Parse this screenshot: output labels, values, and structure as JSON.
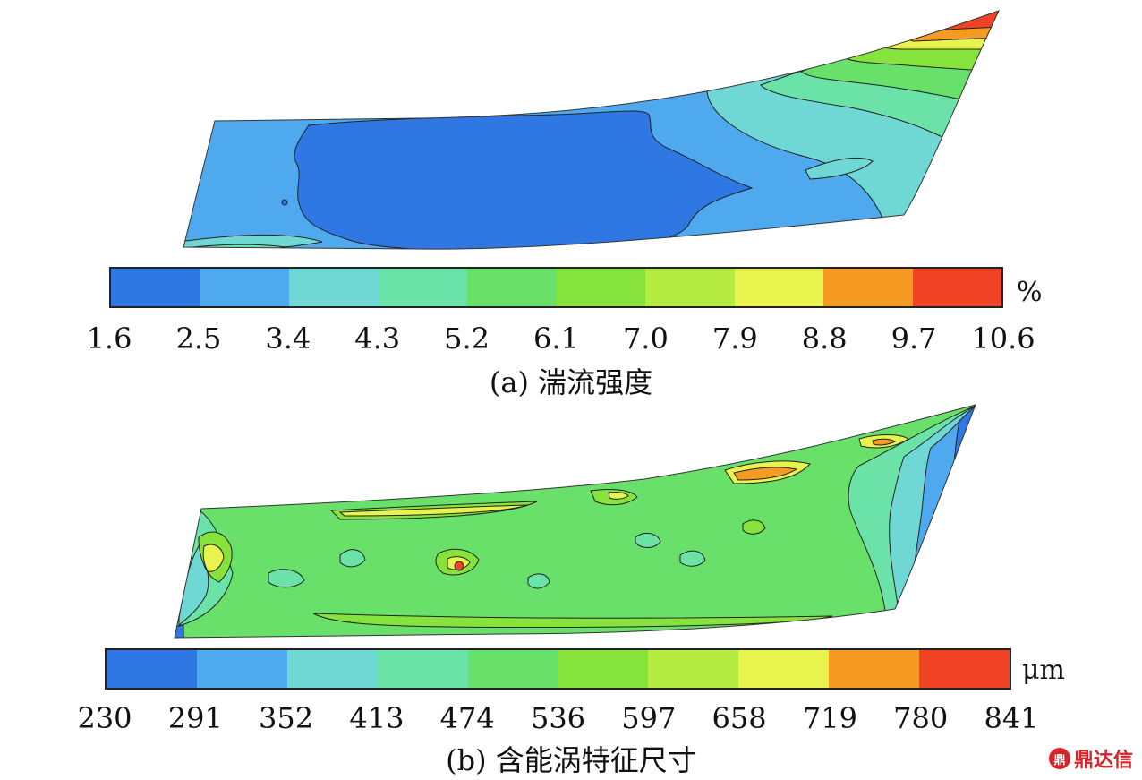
{
  "panel_a": {
    "caption": "(a) 湍流强度",
    "unit": "%",
    "ticks": [
      "1.6",
      "2.5",
      "3.4",
      "4.3",
      "5.2",
      "6.1",
      "7.0",
      "7.9",
      "8.8",
      "9.7",
      "10.6"
    ]
  },
  "panel_b": {
    "caption": "(b) 含能涡特征尺寸",
    "unit": "μm",
    "ticks": [
      "230",
      "291",
      "352",
      "413",
      "474",
      "536",
      "597",
      "658",
      "719",
      "780",
      "841"
    ]
  },
  "colorscale": [
    "#2f77e3",
    "#4ea9ee",
    "#6fd8d4",
    "#6be3a8",
    "#68e06a",
    "#86e33c",
    "#b6eb41",
    "#e8f44d",
    "#f59a22",
    "#f04225"
  ],
  "watermark": {
    "icon": "ding-logo-icon",
    "mark": "鼎",
    "text": "鼎达信"
  }
}
